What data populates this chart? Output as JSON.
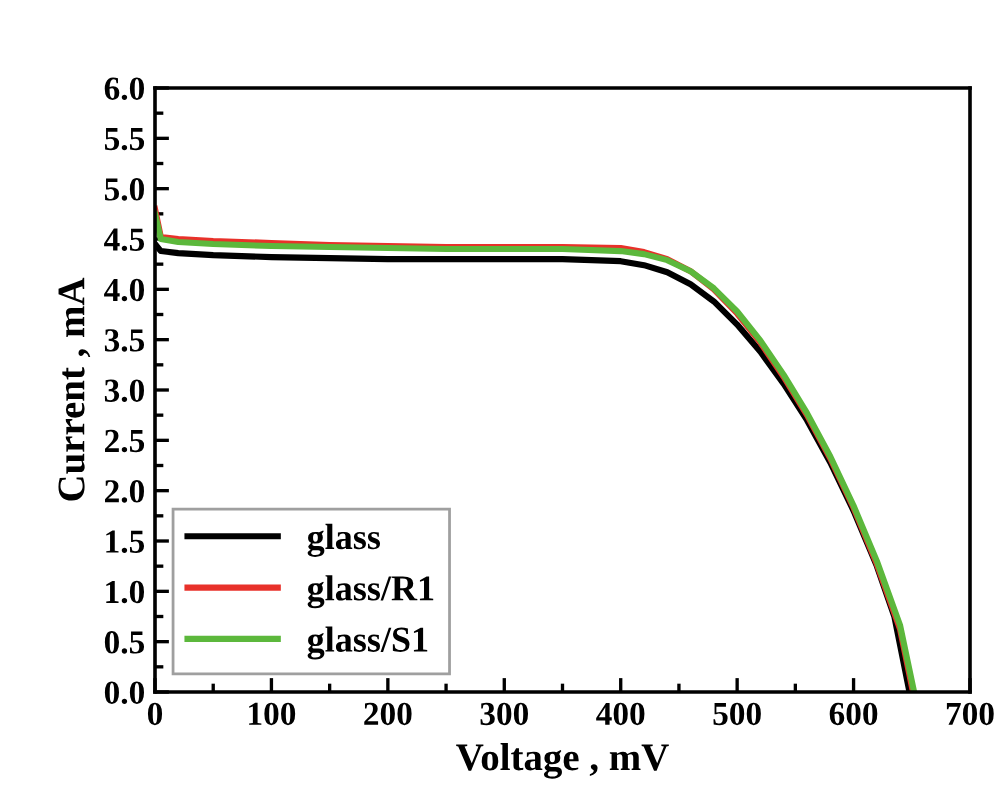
{
  "chart_data": {
    "type": "line",
    "xlabel": "Voltage , mV",
    "ylabel": "Current , mA",
    "xlim": [
      0,
      700
    ],
    "ylim": [
      0,
      6
    ],
    "xticks": [
      0,
      100,
      200,
      300,
      400,
      500,
      600,
      700
    ],
    "yticks": [
      {
        "value": 0,
        "label": "0.0"
      },
      {
        "value": 0.5,
        "label": "0.5"
      },
      {
        "value": 1,
        "label": "1.0"
      },
      {
        "value": 1.5,
        "label": "1.5"
      },
      {
        "value": 2,
        "label": "2.0"
      },
      {
        "value": 2.5,
        "label": "2.5"
      },
      {
        "value": 3,
        "label": "3.0"
      },
      {
        "value": 3.5,
        "label": "3.5"
      },
      {
        "value": 4,
        "label": "4.0"
      },
      {
        "value": 4.5,
        "label": "4.5"
      },
      {
        "value": 5,
        "label": "5.0"
      },
      {
        "value": 5.5,
        "label": "5.5"
      },
      {
        "value": 6,
        "label": "6.0"
      }
    ],
    "legend": "bottom left",
    "grid": false,
    "marker": "none",
    "line_style": "solid",
    "series": [
      {
        "name": "glass",
        "color": "#000000",
        "x": [
          0,
          5,
          20,
          50,
          100,
          150,
          200,
          250,
          300,
          350,
          400,
          420,
          440,
          460,
          480,
          500,
          520,
          540,
          560,
          580,
          600,
          620,
          635,
          648
        ],
        "values": [
          4.45,
          4.38,
          4.36,
          4.34,
          4.32,
          4.31,
          4.3,
          4.3,
          4.3,
          4.3,
          4.28,
          4.24,
          4.17,
          4.05,
          3.88,
          3.65,
          3.38,
          3.06,
          2.7,
          2.28,
          1.8,
          1.25,
          0.75,
          0
        ]
      },
      {
        "name": "glass/R1",
        "color": "#e8312a",
        "x": [
          0,
          5,
          20,
          50,
          100,
          150,
          200,
          250,
          300,
          350,
          400,
          420,
          440,
          460,
          480,
          500,
          520,
          540,
          560,
          580,
          600,
          620,
          640,
          651
        ],
        "values": [
          4.8,
          4.52,
          4.5,
          4.48,
          4.46,
          4.44,
          4.43,
          4.42,
          4.42,
          4.42,
          4.41,
          4.37,
          4.3,
          4.18,
          4.0,
          3.76,
          3.47,
          3.13,
          2.75,
          2.32,
          1.83,
          1.27,
          0.62,
          0
        ]
      },
      {
        "name": "glass/S1",
        "color": "#5cb83c",
        "x": [
          0,
          5,
          20,
          50,
          100,
          150,
          200,
          250,
          300,
          350,
          400,
          420,
          440,
          460,
          480,
          500,
          520,
          540,
          560,
          580,
          600,
          620,
          640,
          652
        ],
        "values": [
          4.75,
          4.5,
          4.47,
          4.45,
          4.43,
          4.42,
          4.41,
          4.4,
          4.4,
          4.4,
          4.38,
          4.35,
          4.29,
          4.18,
          4.01,
          3.78,
          3.49,
          3.15,
          2.77,
          2.34,
          1.85,
          1.3,
          0.66,
          0
        ]
      }
    ]
  }
}
